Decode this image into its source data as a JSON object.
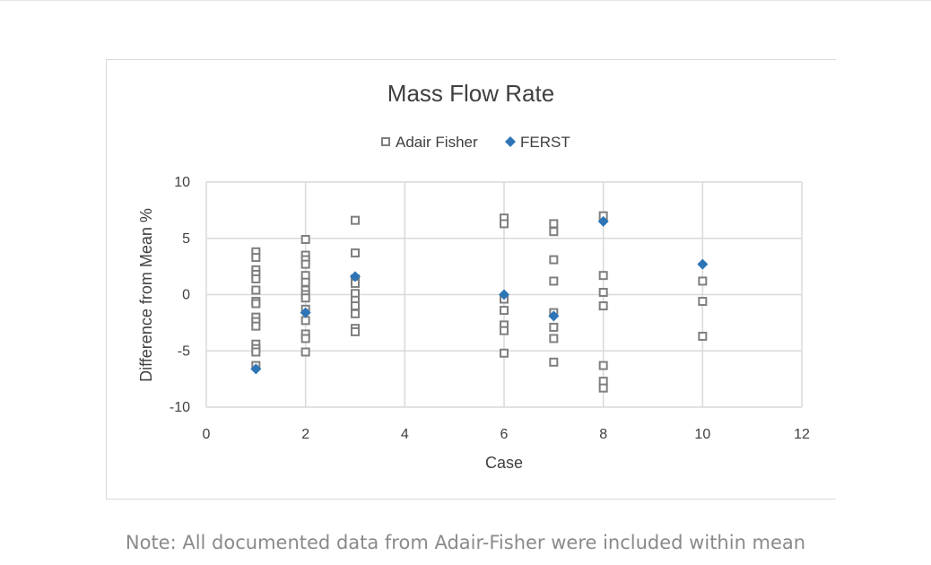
{
  "chart_data": {
    "type": "scatter",
    "title": "Mass Flow Rate",
    "xlabel": "Case",
    "ylabel": "Difference from Mean %",
    "xlim": [
      0,
      12
    ],
    "ylim": [
      -10,
      10
    ],
    "x_ticks": [
      0,
      2,
      4,
      6,
      8,
      10,
      12
    ],
    "y_ticks": [
      -10,
      -5,
      0,
      5,
      10
    ],
    "x_tick_labels": [
      "0",
      "2",
      "4",
      "6",
      "8",
      "10",
      "12"
    ],
    "y_tick_labels": [
      "-10",
      "-5",
      "0",
      "5",
      "10"
    ],
    "grid": true,
    "legend_position": "top",
    "series": [
      {
        "name": "Adair Fisher",
        "marker": "hollow-square",
        "color": "#7f7f7f",
        "points": [
          [
            1,
            3.8
          ],
          [
            1,
            3.3
          ],
          [
            1,
            2.2
          ],
          [
            1,
            1.8
          ],
          [
            1,
            1.4
          ],
          [
            1,
            0.4
          ],
          [
            1,
            -0.6
          ],
          [
            1,
            -0.8
          ],
          [
            1,
            -2.0
          ],
          [
            1,
            -2.4
          ],
          [
            1,
            -2.8
          ],
          [
            1,
            -4.4
          ],
          [
            1,
            -4.8
          ],
          [
            1,
            -5.1
          ],
          [
            1,
            -6.3
          ],
          [
            2,
            4.9
          ],
          [
            2,
            3.5
          ],
          [
            2,
            3.1
          ],
          [
            2,
            2.7
          ],
          [
            2,
            1.7
          ],
          [
            2,
            1.1
          ],
          [
            2,
            0.4
          ],
          [
            2,
            0.0
          ],
          [
            2,
            -0.3
          ],
          [
            2,
            -1.3
          ],
          [
            2,
            -2.3
          ],
          [
            2,
            -3.5
          ],
          [
            2,
            -3.9
          ],
          [
            2,
            -5.1
          ],
          [
            3,
            6.6
          ],
          [
            3,
            3.7
          ],
          [
            3,
            1.4
          ],
          [
            3,
            1.0
          ],
          [
            3,
            0.1
          ],
          [
            3,
            -0.5
          ],
          [
            3,
            -1.0
          ],
          [
            3,
            -1.7
          ],
          [
            3,
            -3.0
          ],
          [
            3,
            -3.3
          ],
          [
            6,
            6.8
          ],
          [
            6,
            6.3
          ],
          [
            6,
            -0.4
          ],
          [
            6,
            -1.4
          ],
          [
            6,
            -2.7
          ],
          [
            6,
            -3.2
          ],
          [
            6,
            -5.2
          ],
          [
            7,
            6.3
          ],
          [
            7,
            5.6
          ],
          [
            7,
            3.1
          ],
          [
            7,
            1.2
          ],
          [
            7,
            -1.6
          ],
          [
            7,
            -2.9
          ],
          [
            7,
            -3.9
          ],
          [
            7,
            -6.0
          ],
          [
            8,
            7.0
          ],
          [
            8,
            1.7
          ],
          [
            8,
            0.2
          ],
          [
            8,
            -1.0
          ],
          [
            8,
            -6.3
          ],
          [
            8,
            -7.7
          ],
          [
            8,
            -8.3
          ],
          [
            10,
            1.2
          ],
          [
            10,
            -0.6
          ],
          [
            10,
            -3.7
          ]
        ]
      },
      {
        "name": "FERST",
        "marker": "filled-diamond",
        "color": "#2e75b6",
        "points": [
          [
            1,
            -6.6
          ],
          [
            2,
            -1.6
          ],
          [
            3,
            1.6
          ],
          [
            6,
            0.0
          ],
          [
            7,
            -1.9
          ],
          [
            8,
            6.5
          ],
          [
            10,
            2.7
          ]
        ]
      }
    ]
  },
  "note": "Note: All documented data from Adair-Fisher were included within mean"
}
